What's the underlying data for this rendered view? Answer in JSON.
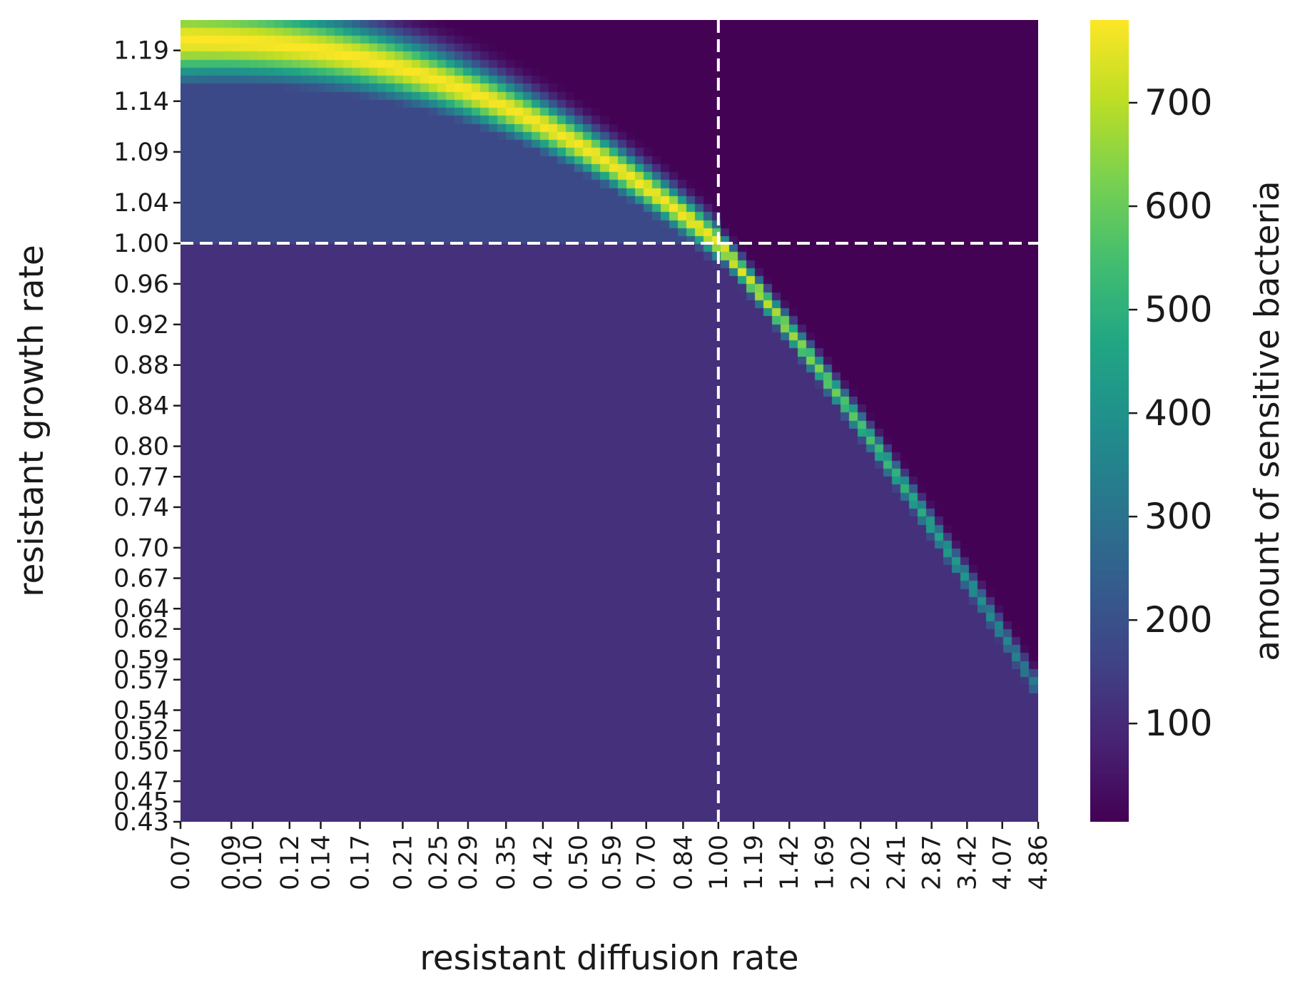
{
  "chart_data": {
    "type": "heatmap",
    "xlabel": "resistant diffusion rate",
    "ylabel": "resistant growth rate",
    "x_tick_labels": [
      "0.07",
      "0.09",
      "0.10",
      "0.12",
      "0.14",
      "0.17",
      "0.21",
      "0.25",
      "0.29",
      "0.35",
      "0.42",
      "0.50",
      "0.59",
      "0.70",
      "0.84",
      "1.00",
      "1.19",
      "1.42",
      "1.69",
      "2.02",
      "2.41",
      "2.87",
      "3.42",
      "4.07",
      "4.86"
    ],
    "y_tick_labels": [
      "1.19",
      "1.14",
      "1.09",
      "1.04",
      "1.00",
      "0.96",
      "0.92",
      "0.88",
      "0.84",
      "0.80",
      "0.77",
      "0.74",
      "0.70",
      "0.67",
      "0.64",
      "0.62",
      "0.59",
      "0.57",
      "0.54",
      "0.52",
      "0.50",
      "0.47",
      "0.45",
      "0.43"
    ],
    "x_scale": "log",
    "x_range": [
      0.07,
      4.86
    ],
    "y_range": [
      0.43,
      1.22
    ],
    "grid_size": [
      100,
      100
    ],
    "reference_lines": [
      {
        "orientation": "vertical",
        "x": 1.0,
        "style": "dashed",
        "color": "#ffffff"
      },
      {
        "orientation": "horizontal",
        "y": 1.0,
        "style": "dashed",
        "color": "#ffffff"
      }
    ],
    "colorbar": {
      "label": "amount of sensitive bacteria",
      "colormap": "viridis",
      "range": [
        5,
        780
      ],
      "ticks": [
        {
          "value": 100,
          "label": "100"
        },
        {
          "value": 200,
          "label": "200"
        },
        {
          "value": 300,
          "label": "300"
        },
        {
          "value": 400,
          "label": "400"
        },
        {
          "value": 500,
          "label": "500"
        },
        {
          "value": 600,
          "label": "600"
        },
        {
          "value": 700,
          "label": "700"
        }
      ]
    },
    "regions": [
      {
        "region": "below diagonal ridge",
        "value": 115
      },
      {
        "region": "upper-left plateau (growth > 1.00, diffusion < 1.00)",
        "value": 180
      },
      {
        "region": "above diagonal ridge (upper right)",
        "value": 8
      },
      {
        "region": "diagonal ridge from (0.07, 1.20) through (1.00, 1.00) to (4.86, 0.56)",
        "value_range": [
          300,
          780
        ]
      }
    ]
  }
}
